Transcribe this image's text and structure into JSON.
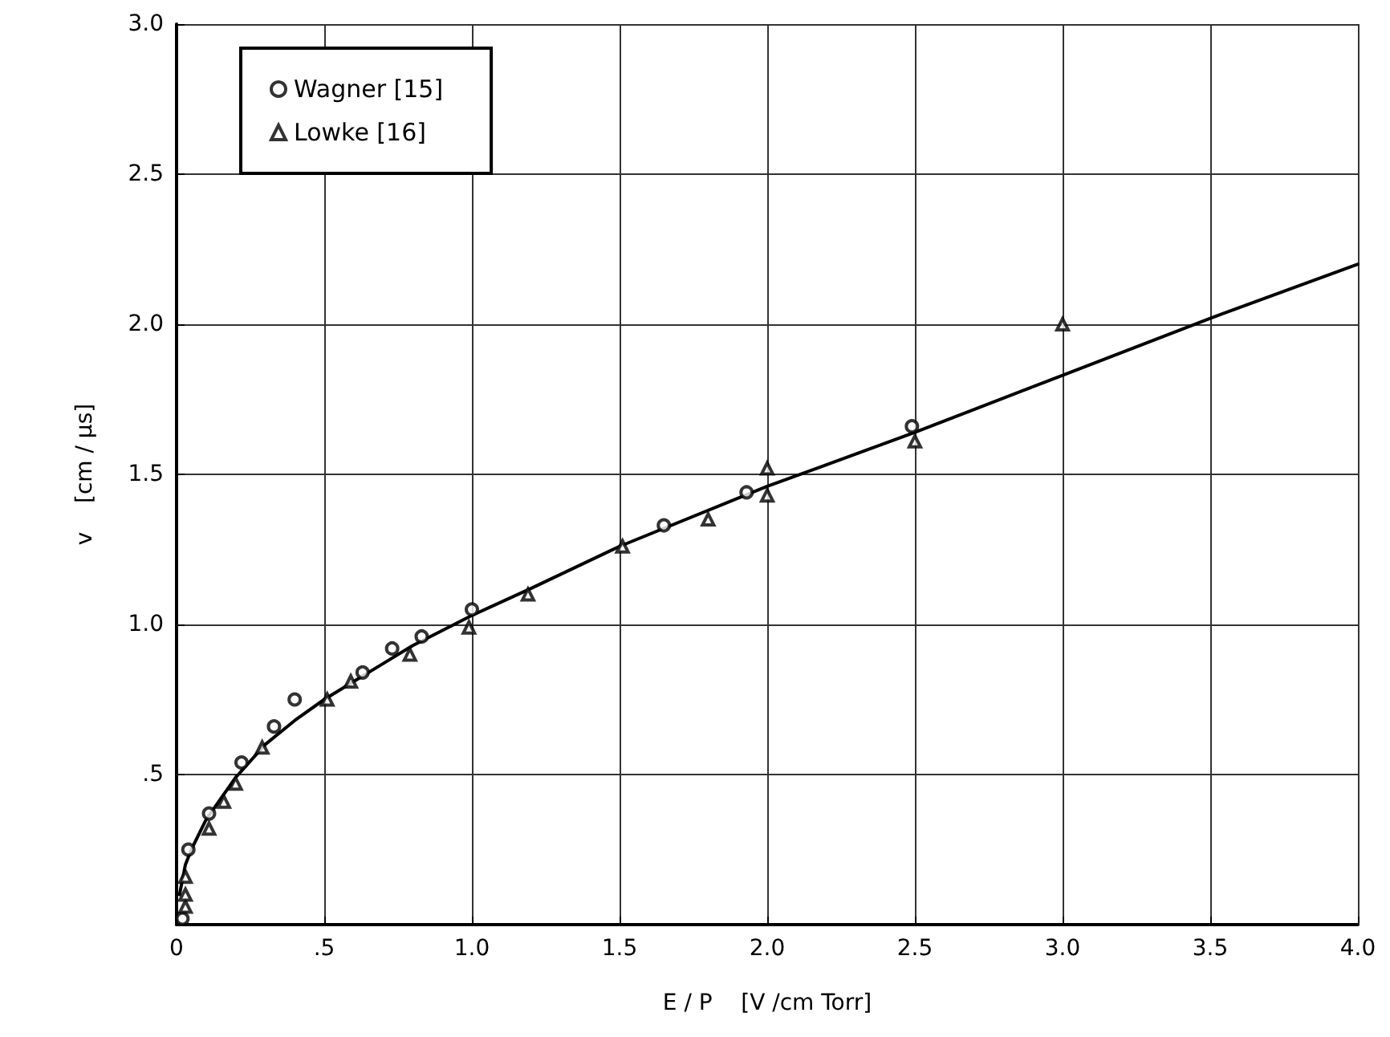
{
  "chart_data": {
    "type": "scatter",
    "xlabel": "E / P    [V /cm Torr]",
    "ylabel": "v    [cm / µs]",
    "xlim": [
      0,
      4.0
    ],
    "ylim": [
      0,
      3.0
    ],
    "xticks": [
      {
        "value": 0,
        "label": "0"
      },
      {
        "value": 0.5,
        "label": ".5"
      },
      {
        "value": 1,
        "label": "1.0"
      },
      {
        "value": 1.5,
        "label": "1.5"
      },
      {
        "value": 2,
        "label": "2.0"
      },
      {
        "value": 2.5,
        "label": "2.5"
      },
      {
        "value": 3,
        "label": "3.0"
      },
      {
        "value": 3.5,
        "label": "3.5"
      },
      {
        "value": 4,
        "label": "4.0"
      }
    ],
    "yticks": [
      {
        "value": 0,
        "label": null
      },
      {
        "value": 0.5,
        "label": ".5"
      },
      {
        "value": 1,
        "label": "1.0"
      },
      {
        "value": 1.5,
        "label": "1.5"
      },
      {
        "value": 2,
        "label": "2.0"
      },
      {
        "value": 2.5,
        "label": "2.5"
      },
      {
        "value": 3,
        "label": "3.0"
      }
    ],
    "grid": true,
    "legend": "top left",
    "series": [
      {
        "name": "Wagner [15]",
        "color": "#000000",
        "marker": "circle",
        "x": [
          0.02,
          0.04,
          0.11,
          0.22,
          0.33,
          0.4,
          0.63,
          0.73,
          0.83,
          1.0,
          1.65,
          1.93,
          2.49
        ],
        "values": [
          0.02,
          0.25,
          0.37,
          0.54,
          0.66,
          0.75,
          0.84,
          0.92,
          0.96,
          1.05,
          1.33,
          1.44,
          1.66
        ]
      },
      {
        "name": "Lowke [16]",
        "color": "#000000",
        "marker": "triangle",
        "x": [
          0.03,
          0.03,
          0.03,
          0.11,
          0.16,
          0.2,
          0.29,
          0.51,
          0.59,
          0.79,
          0.99,
          1.19,
          1.51,
          1.8,
          2.0,
          2.0,
          2.5,
          3.0
        ],
        "values": [
          0.06,
          0.1,
          0.16,
          0.32,
          0.41,
          0.47,
          0.59,
          0.75,
          0.81,
          0.9,
          0.99,
          1.1,
          1.26,
          1.35,
          1.43,
          1.52,
          1.61,
          2.0
        ]
      },
      {
        "type": "line",
        "color": "#000000",
        "marker": "none",
        "line_style": "solid",
        "x": [
          0.01,
          0.03,
          0.05,
          0.1,
          0.15,
          0.2,
          0.3,
          0.4,
          0.5,
          0.6,
          0.7,
          0.8,
          0.9,
          1.0,
          1.2,
          1.5,
          2.0,
          2.5,
          3.0,
          3.5,
          4.0
        ],
        "values": [
          0.1,
          0.2,
          0.25,
          0.35,
          0.42,
          0.49,
          0.6,
          0.68,
          0.75,
          0.81,
          0.87,
          0.93,
          0.98,
          1.03,
          1.12,
          1.26,
          1.46,
          1.64,
          1.83,
          2.02,
          2.2
        ]
      }
    ]
  }
}
